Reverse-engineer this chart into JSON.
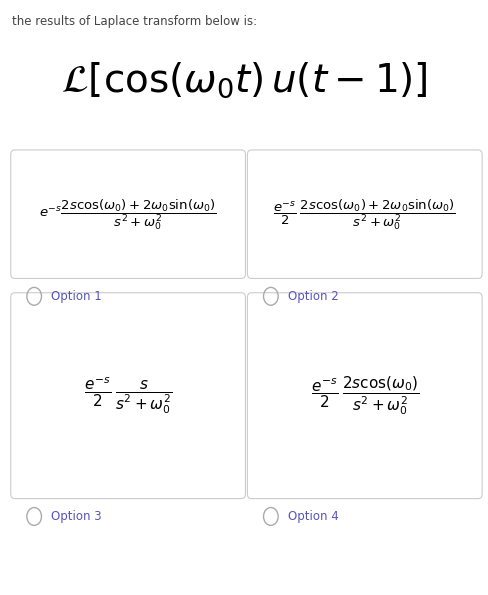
{
  "title_text": "the results of Laplace transform below is:",
  "main_formula": "$\\mathcal{L}[\\cos(\\omega_0 t)\\, u(t-1)]$",
  "option1_formula": "$e^{-s}\\dfrac{2s\\cos(\\omega_0) + 2\\omega_0\\sin(\\omega_0)}{s^2 + \\omega_0^2}$",
  "option2_formula": "$\\dfrac{e^{-s}}{2}\\;\\dfrac{2s\\cos(\\omega_0) + 2\\omega_0\\sin(\\omega_0)}{s^2 + \\omega_0^2}$",
  "option3_formula": "$\\dfrac{e^{-s}}{2}\\;\\dfrac{s}{s^2 + \\omega_0^2}$",
  "option4_formula": "$\\dfrac{e^{-s}}{2}\\;\\dfrac{2s\\cos(\\omega_0)}{s^2 + \\omega_0^2}$",
  "option_labels": [
    "Option 1",
    "Option 2",
    "Option 3",
    "Option 4"
  ],
  "bg_color": "#ffffff",
  "box_face_color": "#ffffff",
  "box_edge_color": "#cccccc",
  "title_color": "#444444",
  "option_label_color": "#5555bb",
  "formula_color": "#000000",
  "radio_color": "#aaaaaa"
}
